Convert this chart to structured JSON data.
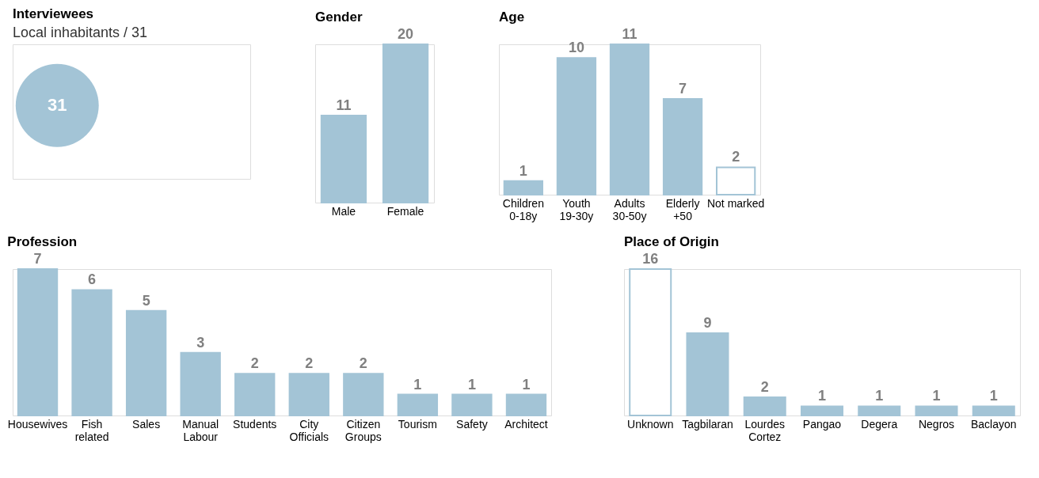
{
  "chart_data": [
    {
      "type": "other",
      "title": "Interviewees",
      "subtitle": "Local inhabitants / 31",
      "categories": [
        null
      ],
      "values": [
        31
      ],
      "color": "#a3c4d6",
      "data_labels": true
    },
    {
      "type": "bar",
      "title": "Gender",
      "categories": [
        "Male",
        "Female"
      ],
      "values": [
        11,
        20
      ],
      "color": "#a3c4d6",
      "data_labels": true
    },
    {
      "type": "bar",
      "title": "Age",
      "categories": [
        "Children\n0-18y",
        "Youth\n19-30y",
        "Adults\n30-50y",
        "Elderly\n+50",
        "Not marked"
      ],
      "values": [
        1,
        10,
        11,
        7,
        2
      ],
      "color": "#a3c4d6",
      "colors": [
        "#a3c4d6",
        "#a3c4d6",
        "#a3c4d6",
        "#a3c4d6",
        "#ffffff"
      ],
      "data_labels": true
    },
    {
      "type": "bar",
      "title": "Profession",
      "categories": [
        "Housewives",
        "Fish\nrelated",
        "Sales",
        "Manual\nLabour",
        "Students",
        "City\nOfficials",
        "Citizen\nGroups",
        "Tourism",
        "Safety",
        "Architect"
      ],
      "values": [
        7,
        6,
        5,
        3,
        2,
        2,
        2,
        1,
        1,
        1
      ],
      "color": "#a3c4d6",
      "data_labels": true
    },
    {
      "type": "bar",
      "title": "Place of Origin",
      "categories": [
        "Unknown",
        "Tagbilaran",
        "Lourdes\nCortez",
        "Pangao",
        "Degera",
        "Negros",
        "Baclayon"
      ],
      "values": [
        16,
        9,
        2,
        1,
        1,
        1,
        1
      ],
      "color": "#a3c4d6",
      "colors": [
        "#ffffff",
        "#a3c4d6",
        "#a3c4d6",
        "#a3c4d6",
        "#a3c4d6",
        "#a3c4d6",
        "#a3c4d6"
      ],
      "data_labels": true
    }
  ]
}
